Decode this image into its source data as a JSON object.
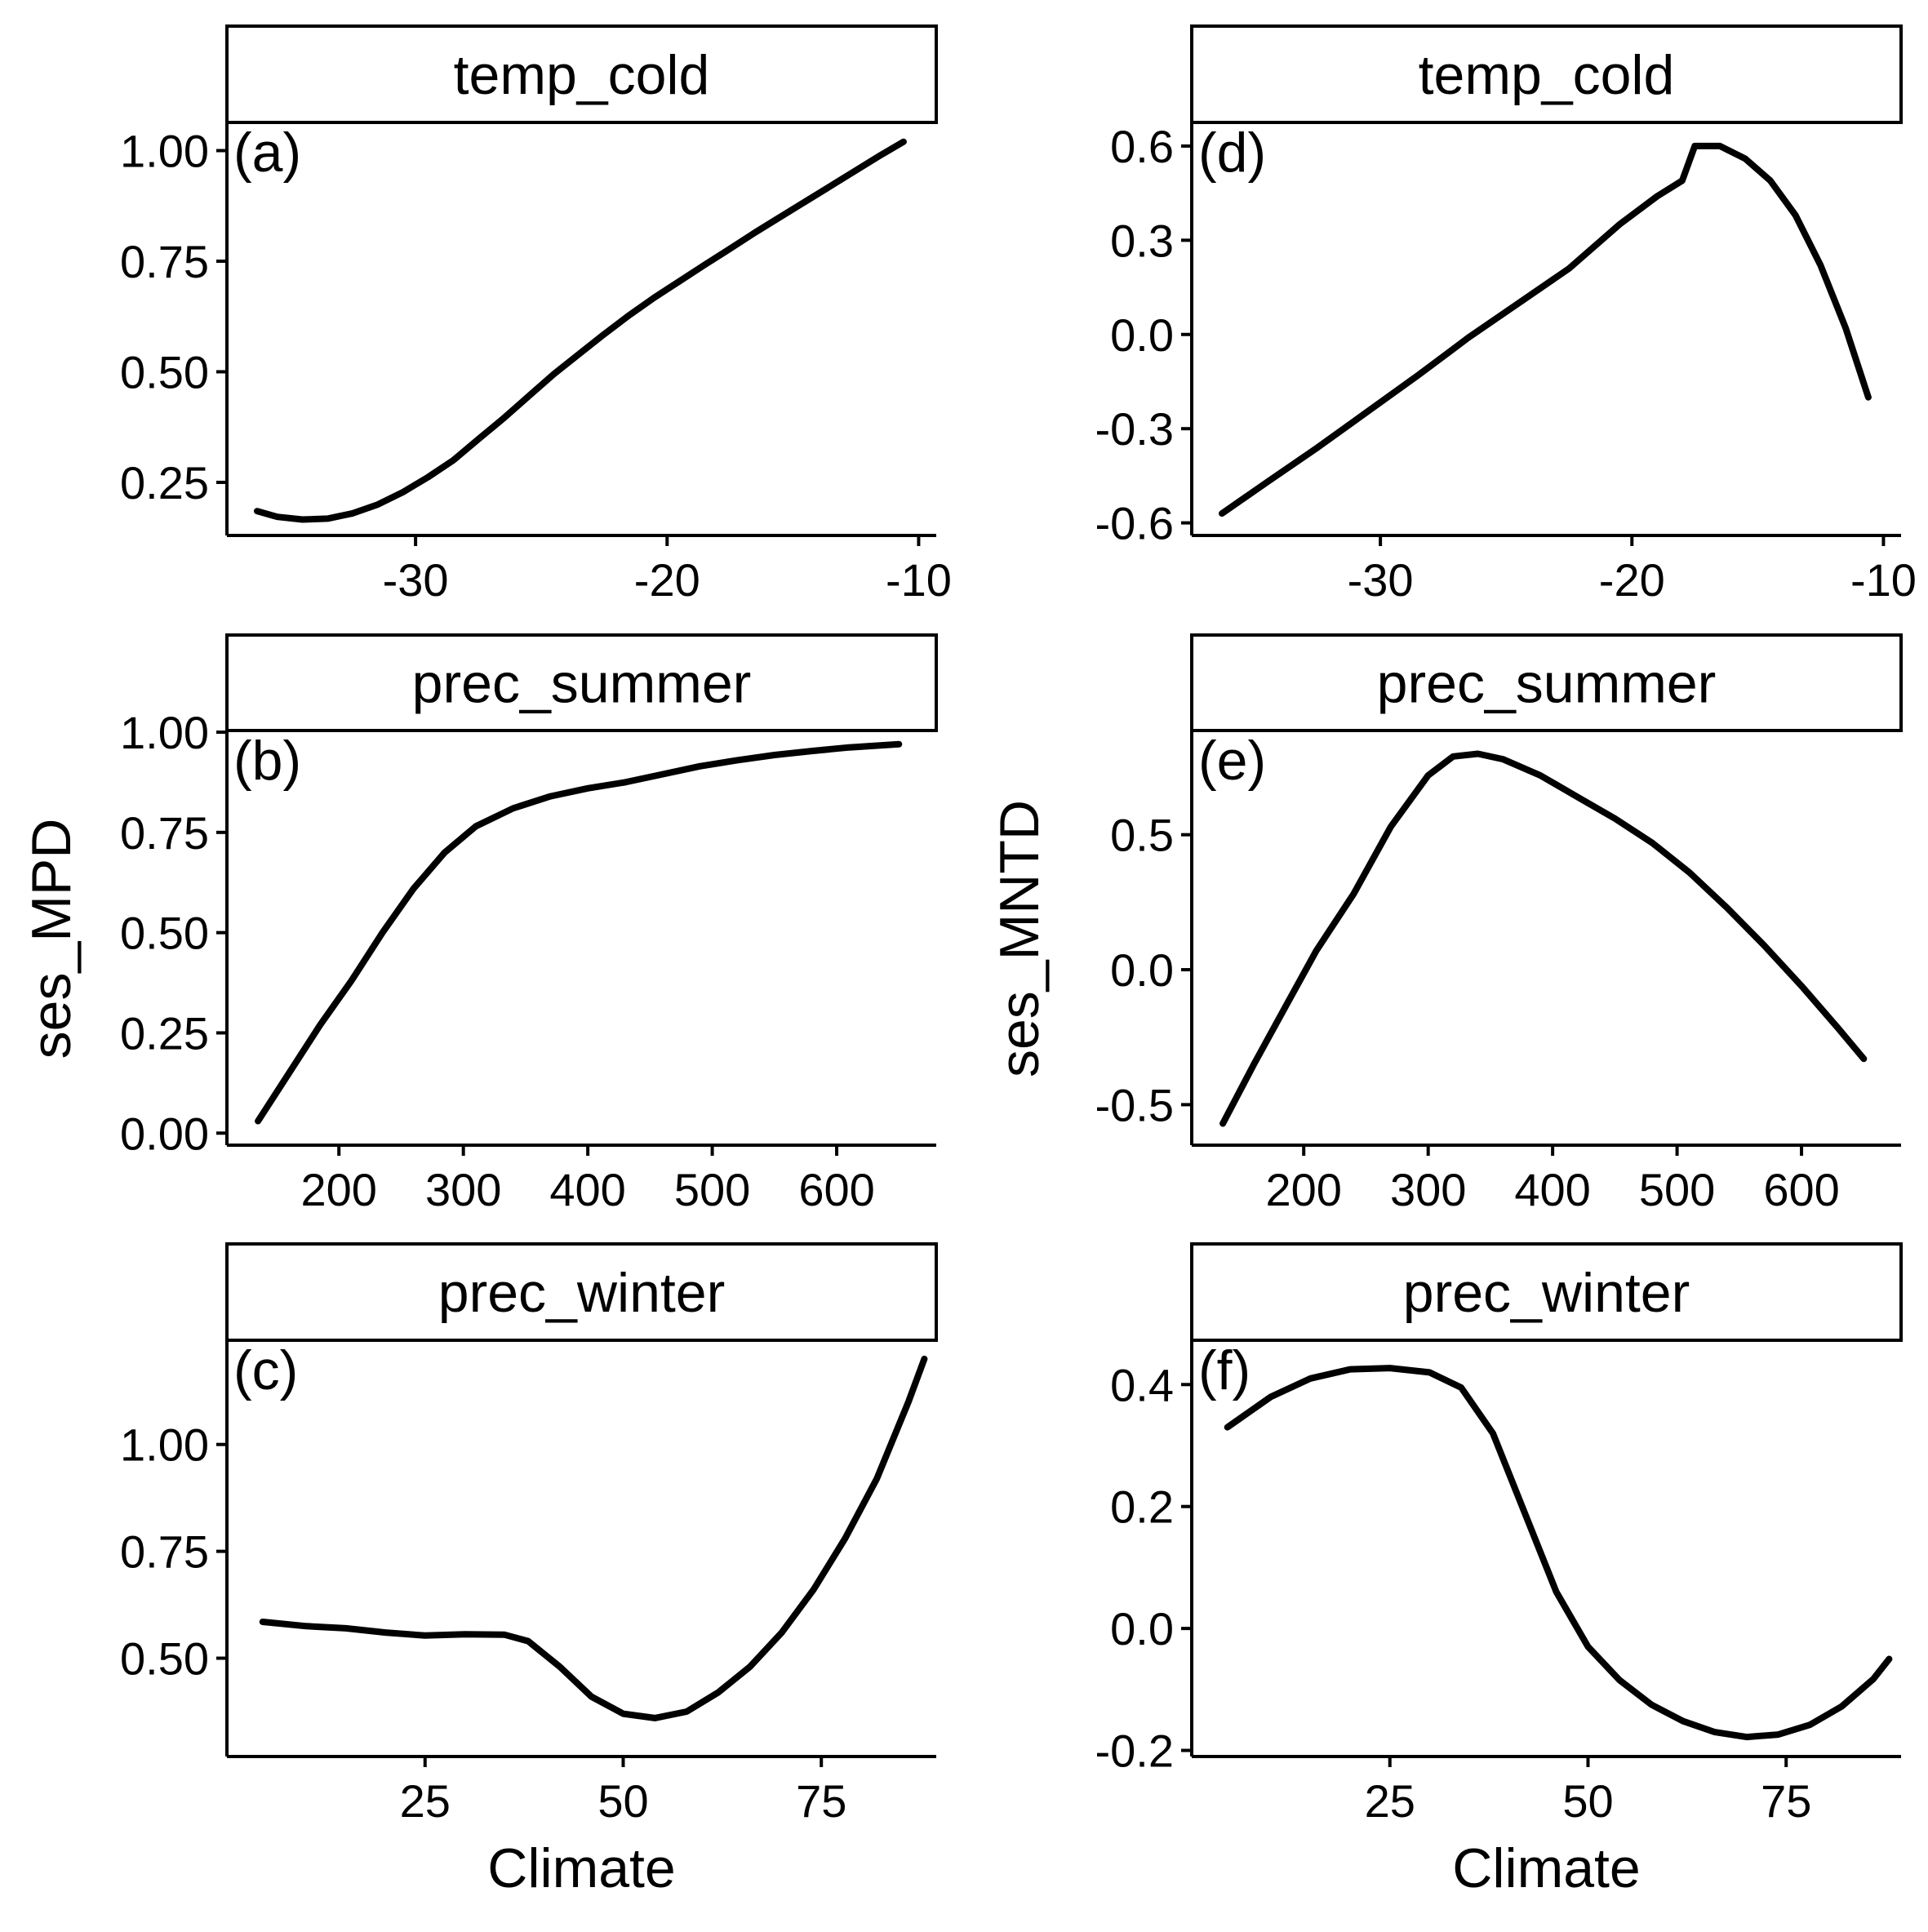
{
  "figure": {
    "y_axis_titles": [
      "ses_MPD",
      "ses_MNTD"
    ],
    "x_axis_title": "Climate",
    "line_color": "#000000"
  },
  "chart_data": [
    {
      "type": "line",
      "tag": "(a)",
      "facet": "temp_cold",
      "xlim": [
        -37.5,
        -9.3
      ],
      "ylim": [
        0.13,
        1.06
      ],
      "xticks": [
        -30,
        -20,
        -10
      ],
      "xtick_labels": [
        "-30",
        "-20",
        "-10"
      ],
      "yticks": [
        0.25,
        0.5,
        0.75,
        1.0
      ],
      "ytick_labels": [
        "0.25",
        "0.50",
        "0.75",
        "1.00"
      ],
      "x": [
        -36.3,
        -35.5,
        -34.5,
        -33.5,
        -32.5,
        -31.5,
        -30.5,
        -29.5,
        -28.5,
        -27.5,
        -26.5,
        -25.5,
        -24.5,
        -23.5,
        -22.5,
        -21.5,
        -20.5,
        -19.5,
        -18.5,
        -17.5,
        -16.5,
        -15.5,
        -14.5,
        -13.5,
        -12.5,
        -11.5,
        -10.6
      ],
      "y": [
        0.185,
        0.172,
        0.166,
        0.168,
        0.18,
        0.2,
        0.228,
        0.262,
        0.3,
        0.348,
        0.395,
        0.445,
        0.495,
        0.54,
        0.585,
        0.628,
        0.668,
        0.705,
        0.742,
        0.778,
        0.815,
        0.85,
        0.885,
        0.92,
        0.955,
        0.99,
        1.02
      ]
    },
    {
      "type": "line",
      "tag": "(b)",
      "facet": "prec_summer",
      "xlim": [
        110,
        680
      ],
      "ylim": [
        -0.03,
        1.0
      ],
      "xticks": [
        200,
        300,
        400,
        500,
        600
      ],
      "xtick_labels": [
        "200",
        "300",
        "400",
        "500",
        "600"
      ],
      "yticks": [
        0.0,
        0.25,
        0.5,
        0.75,
        1.0
      ],
      "ytick_labels": [
        "0.00",
        "0.25",
        "0.50",
        "0.75",
        "1.00"
      ],
      "x": [
        135,
        160,
        185,
        210,
        235,
        260,
        285,
        310,
        340,
        370,
        400,
        430,
        460,
        490,
        520,
        550,
        580,
        610,
        650
      ],
      "y": [
        0.03,
        0.15,
        0.27,
        0.38,
        0.5,
        0.61,
        0.7,
        0.765,
        0.81,
        0.84,
        0.86,
        0.875,
        0.895,
        0.915,
        0.93,
        0.943,
        0.953,
        0.962,
        0.97
      ]
    },
    {
      "type": "line",
      "tag": "(c)",
      "facet": "prec_winter",
      "xlim": [
        0,
        89.5
      ],
      "ylim": [
        0.27,
        1.24
      ],
      "xticks": [
        25,
        50,
        75
      ],
      "xtick_labels": [
        "25",
        "50",
        "75"
      ],
      "yticks": [
        0.5,
        0.75,
        1.0
      ],
      "ytick_labels": [
        "0.50",
        "0.75",
        "1.00"
      ],
      "x": [
        4.5,
        10,
        15,
        20,
        25,
        30,
        35,
        38,
        42,
        46,
        50,
        54,
        58,
        62,
        66,
        70,
        74,
        78,
        82,
        86,
        88
      ],
      "y": [
        0.585,
        0.575,
        0.57,
        0.56,
        0.553,
        0.556,
        0.555,
        0.54,
        0.48,
        0.41,
        0.37,
        0.36,
        0.375,
        0.42,
        0.48,
        0.56,
        0.66,
        0.78,
        0.92,
        1.1,
        1.2
      ]
    },
    {
      "type": "line",
      "tag": "(d)",
      "facet": "temp_cold",
      "xlim": [
        -37.5,
        -9.3
      ],
      "ylim": [
        -0.64,
        0.67
      ],
      "xticks": [
        -30,
        -20,
        -10
      ],
      "xtick_labels": [
        "-30",
        "-20",
        "-10"
      ],
      "yticks": [
        -0.6,
        -0.3,
        0.0,
        0.3,
        0.6
      ],
      "ytick_labels": [
        "-0.6",
        "-0.3",
        "0.0",
        "0.3",
        "0.6"
      ],
      "x": [
        -36.3,
        -34.5,
        -32.5,
        -30.5,
        -28.5,
        -26.5,
        -24.5,
        -22.5,
        -20.5,
        -19,
        -18,
        -17.5,
        -16.5,
        -15.5,
        -14.5,
        -13.5,
        -12.5,
        -11.5,
        -10.6
      ],
      "y": [
        -0.57,
        -0.47,
        -0.36,
        -0.245,
        -0.13,
        -0.01,
        0.1,
        0.21,
        0.35,
        0.44,
        0.49,
        0.6,
        0.6,
        0.56,
        0.49,
        0.38,
        0.22,
        0.02,
        -0.2
      ]
    },
    {
      "type": "line",
      "tag": "(e)",
      "facet": "prec_summer",
      "xlim": [
        110,
        680
      ],
      "ylim": [
        -0.65,
        0.88
      ],
      "xticks": [
        200,
        300,
        400,
        500,
        600
      ],
      "xtick_labels": [
        "200",
        "300",
        "400",
        "500",
        "600"
      ],
      "yticks": [
        -0.5,
        0.0,
        0.5
      ],
      "ytick_labels": [
        "-0.5",
        "0.0",
        "0.5"
      ],
      "x": [
        135,
        160,
        185,
        210,
        240,
        270,
        300,
        320,
        340,
        360,
        390,
        420,
        450,
        480,
        510,
        540,
        570,
        600,
        630,
        650
      ],
      "y": [
        -0.57,
        -0.35,
        -0.14,
        0.07,
        0.28,
        0.53,
        0.72,
        0.79,
        0.8,
        0.78,
        0.72,
        0.64,
        0.56,
        0.47,
        0.36,
        0.23,
        0.09,
        -0.06,
        -0.22,
        -0.33
      ]
    },
    {
      "type": "line",
      "tag": "(f)",
      "facet": "prec_winter",
      "xlim": [
        0,
        89.5
      ],
      "ylim": [
        -0.21,
        0.47
      ],
      "xticks": [
        25,
        50,
        75
      ],
      "xtick_labels": [
        "25",
        "50",
        "75"
      ],
      "yticks": [
        -0.2,
        0.0,
        0.2,
        0.4
      ],
      "ytick_labels": [
        "-0.2",
        "0.0",
        "0.2",
        "0.4"
      ],
      "x": [
        4.5,
        10,
        15,
        20,
        25,
        30,
        34,
        38,
        42,
        46,
        50,
        54,
        58,
        62,
        66,
        70,
        74,
        78,
        82,
        86,
        88
      ],
      "y": [
        0.33,
        0.38,
        0.41,
        0.425,
        0.427,
        0.42,
        0.395,
        0.32,
        0.19,
        0.06,
        -0.03,
        -0.085,
        -0.125,
        -0.152,
        -0.17,
        -0.178,
        -0.174,
        -0.158,
        -0.128,
        -0.083,
        -0.05
      ]
    }
  ]
}
